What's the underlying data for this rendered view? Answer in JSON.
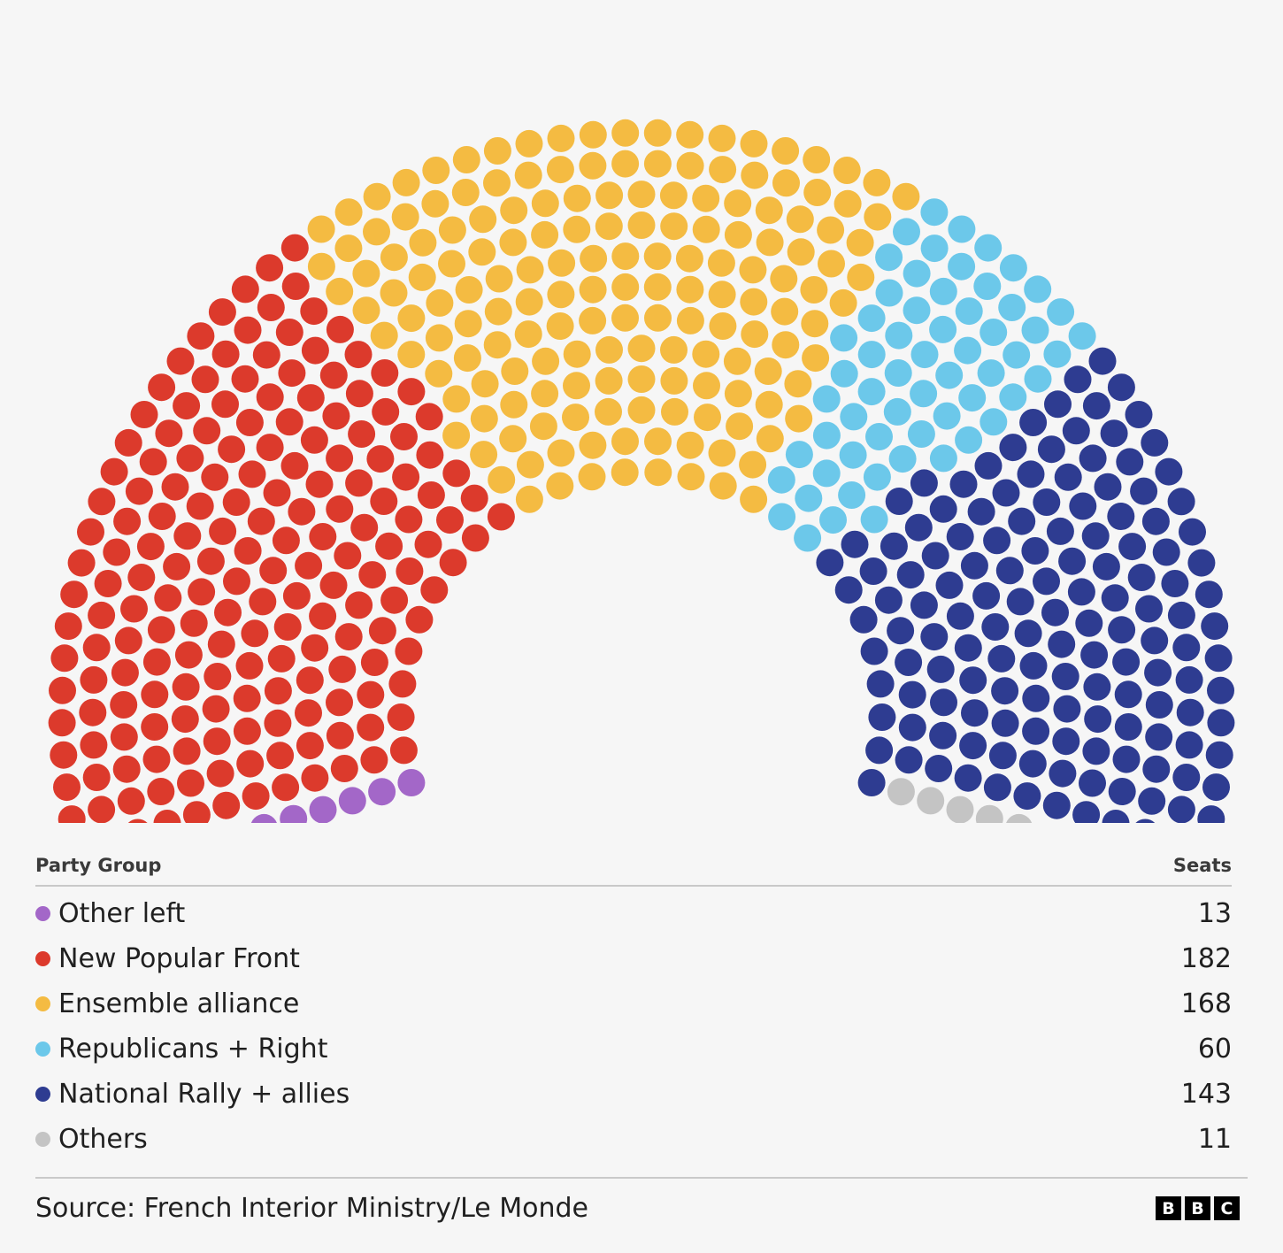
{
  "chart_data": {
    "type": "parliament",
    "total_seats": 577,
    "series": [
      {
        "name": "Other left",
        "value": 13,
        "color": "#a367c8"
      },
      {
        "name": "New Popular Front",
        "value": 182,
        "color": "#dc3a2c"
      },
      {
        "name": "Ensemble alliance",
        "value": 168,
        "color": "#f4bb42"
      },
      {
        "name": "Republicans + Right",
        "value": 60,
        "color": "#6cc8ea"
      },
      {
        "name": "National Rally + allies",
        "value": 143,
        "color": "#2e3c91"
      },
      {
        "name": "Others",
        "value": 11,
        "color": "#c4c4c4"
      }
    ]
  },
  "legend": {
    "header_group": "Party Group",
    "header_seats": "Seats",
    "rows": [
      {
        "label": "Other left",
        "seats": "13",
        "color": "#a367c8"
      },
      {
        "label": "New Popular Front",
        "seats": "182",
        "color": "#dc3a2c"
      },
      {
        "label": "Ensemble alliance",
        "seats": "168",
        "color": "#f4bb42"
      },
      {
        "label": "Republicans + Right",
        "seats": "60",
        "color": "#6cc8ea"
      },
      {
        "label": "National Rally + allies",
        "seats": "143",
        "color": "#2e3c91"
      },
      {
        "label": "Others",
        "seats": "11",
        "color": "#c4c4c4"
      }
    ]
  },
  "footer": {
    "source": "Source: French Interior Ministry/Le Monde",
    "logo_letters": [
      "B",
      "B",
      "C"
    ]
  }
}
